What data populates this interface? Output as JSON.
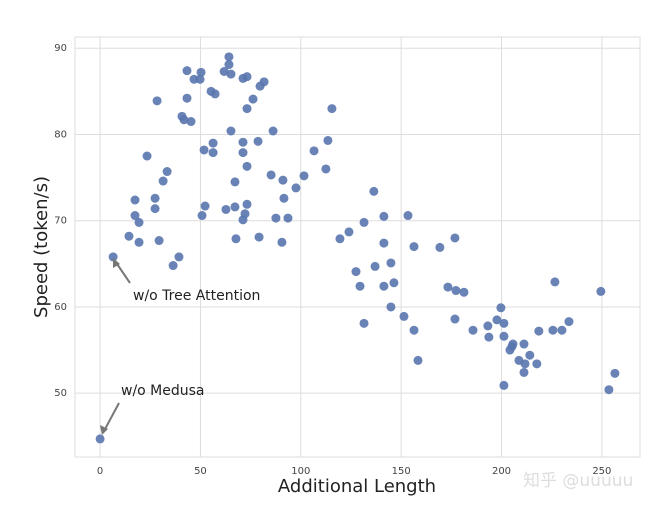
{
  "chart_data": {
    "type": "scatter",
    "x_label": "Additional Length",
    "y_label": "Speed (token/s)",
    "annotations": [
      "w/o Tree Attention",
      "w/o Medusa"
    ],
    "watermark": "知乎 @uuuuu",
    "color": "#5975ae",
    "grid": true,
    "xlim": [
      -12.5,
      269
    ],
    "ylim": [
      42.6,
      91.3
    ],
    "xticks": [
      0,
      50,
      100,
      150,
      200,
      250
    ],
    "yticks": [
      50,
      60,
      70,
      80,
      90
    ],
    "series": [
      {
        "x": [
          0,
          6.5,
          17.4,
          17.4,
          19.4,
          14.4,
          19.4,
          23.4,
          28.4,
          27.4,
          27.4,
          29.4,
          31.4,
          33.4,
          36.4,
          39.3,
          40.8,
          41.8,
          43.3,
          43.3,
          45.3,
          46.8,
          49.8,
          50.3,
          51.8,
          52.3,
          50.8,
          55.3,
          57.3,
          56.3,
          56.3,
          61.8,
          64.2,
          64.2,
          65.2,
          65.2,
          62.7,
          67.2,
          67.2,
          67.7,
          71.2,
          73.2,
          73.2,
          76.2,
          71.2,
          71.2,
          73.2,
          73.2,
          72.2,
          71.2,
          78.7,
          79.7,
          81.7,
          79.2,
          86.2,
          85.2,
          91.1,
          87.6,
          91.6,
          93.6,
          90.6,
          97.6,
          101.6,
          106.6,
          112.5,
          113.5,
          115.5,
          119.5,
          124,
          127.5,
          129.5,
          131.5,
          131.5,
          136.4,
          137,
          141.4,
          141.4,
          141.4,
          144.9,
          146.4,
          144.9,
          151.4,
          153.4,
          156.4,
          156.4,
          158.4,
          169.3,
          173.3,
          176.8,
          176.8,
          177.3,
          181.3,
          185.8,
          193.2,
          193.7,
          197.7,
          199.7,
          201.2,
          201.2,
          205.7,
          204.2,
          205.2,
          201.2,
          208.7,
          211.2,
          211.7,
          211.2,
          214.1,
          217.6,
          218.6,
          225.6,
          226.6,
          230.1,
          233.6,
          249.5,
          253.5,
          256.5
        ],
        "values": [
          44.7,
          65.8,
          72.4,
          70.6,
          69.8,
          68.2,
          67.5,
          77.5,
          83.9,
          72.6,
          71.4,
          67.7,
          74.6,
          75.7,
          64.8,
          65.8,
          82.1,
          81.7,
          87.4,
          84.2,
          81.5,
          86.4,
          86.4,
          87.2,
          78.2,
          71.7,
          70.6,
          85.0,
          84.7,
          79.0,
          77.9,
          87.3,
          89.0,
          88.1,
          87.0,
          80.4,
          71.3,
          74.5,
          71.6,
          67.9,
          86.5,
          86.7,
          83.0,
          84.1,
          79.1,
          77.9,
          76.3,
          71.9,
          70.8,
          70.1,
          79.2,
          85.6,
          86.1,
          68.1,
          80.4,
          75.3,
          74.7,
          70.3,
          72.6,
          70.3,
          67.5,
          73.8,
          75.2,
          78.1,
          76.0,
          79.3,
          83.0,
          67.9,
          68.7,
          64.1,
          62.4,
          69.8,
          58.1,
          73.4,
          64.7,
          70.5,
          67.4,
          62.4,
          65.1,
          62.8,
          60.0,
          58.9,
          70.6,
          67.0,
          57.3,
          53.8,
          66.9,
          62.3,
          68.0,
          58.6,
          61.9,
          61.7,
          57.3,
          57.8,
          56.5,
          58.5,
          59.9,
          58.1,
          56.6,
          55.7,
          55.0,
          55.4,
          50.9,
          53.8,
          55.7,
          53.4,
          52.4,
          54.4,
          53.4,
          57.2,
          57.3,
          62.9,
          57.3,
          58.3,
          61.8,
          50.4,
          52.3
        ]
      }
    ]
  }
}
